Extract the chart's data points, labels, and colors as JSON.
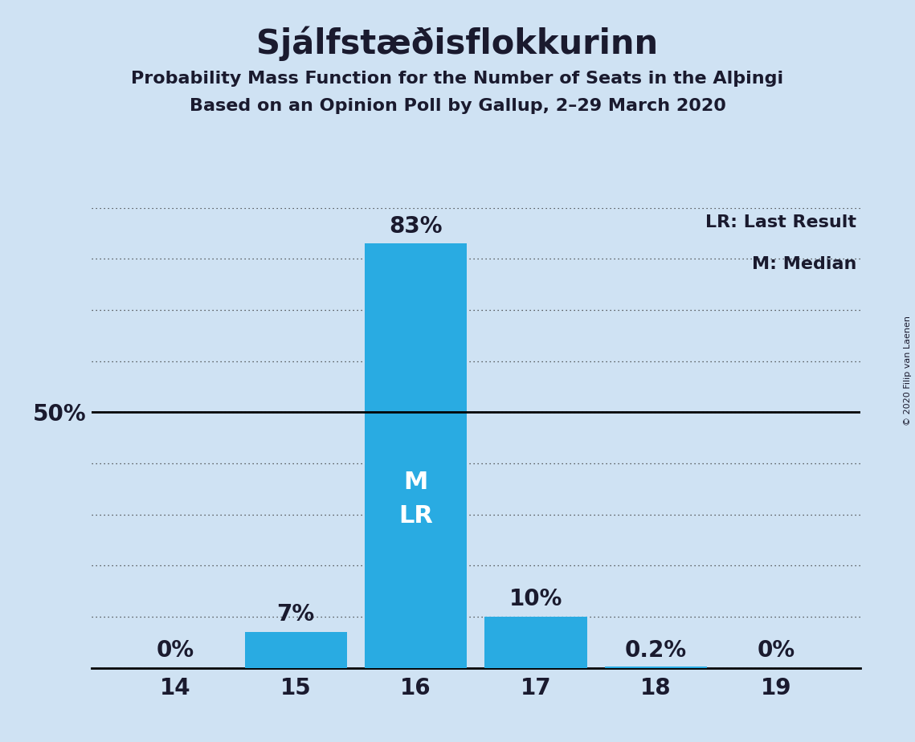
{
  "title": "Sjálfstæðisflokkurinn",
  "subtitle1": "Probability Mass Function for the Number of Seats in the Alþingi",
  "subtitle2": "Based on an Opinion Poll by Gallup, 2–29 March 2020",
  "copyright": "© 2020 Filip van Laenen",
  "categories": [
    14,
    15,
    16,
    17,
    18,
    19
  ],
  "values": [
    0,
    7,
    83,
    10,
    0.2,
    0
  ],
  "bar_color": "#29ABE2",
  "background_color": "#cfe2f3",
  "text_color": "#1a1a2e",
  "bar_labels": [
    "0%",
    "7%",
    "83%",
    "10%",
    "0.2%",
    "0%"
  ],
  "median_seat": 16,
  "last_result_seat": 16,
  "ylim": [
    0,
    90
  ],
  "yticks": [
    0,
    10,
    20,
    30,
    40,
    50,
    60,
    70,
    80,
    90
  ],
  "legend_lr": "LR: Last Result",
  "legend_m": "M: Median",
  "title_fontsize": 30,
  "subtitle_fontsize": 16,
  "label_fontsize": 20,
  "tick_fontsize": 20,
  "legend_fontsize": 16,
  "bar_label_fontsize": 20,
  "ml_label_fontsize": 22
}
